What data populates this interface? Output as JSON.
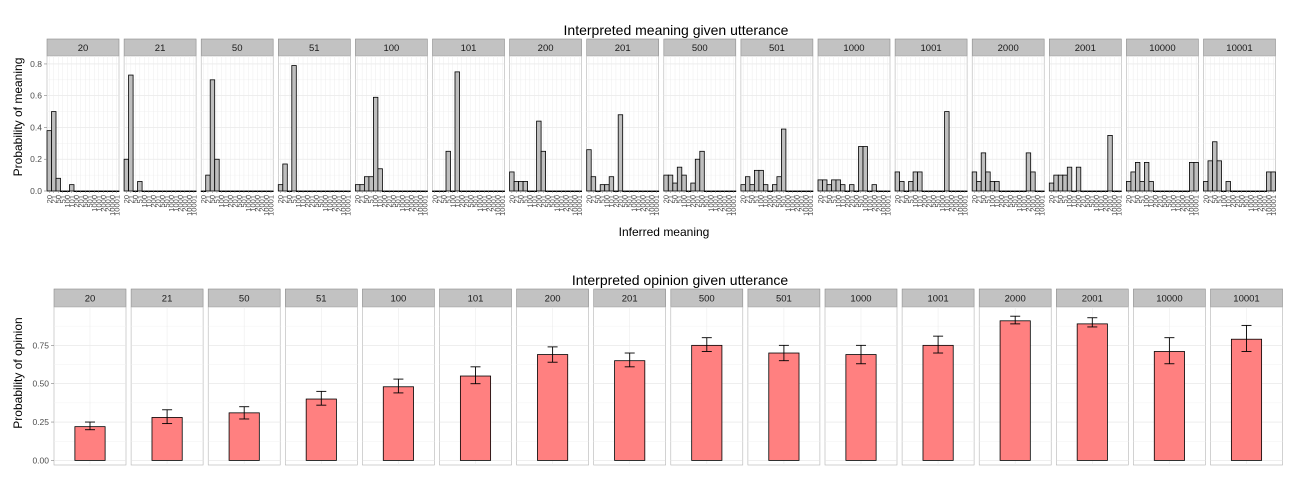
{
  "chart_data": [
    {
      "type": "bar",
      "title": "Interpreted meaning given utterance",
      "xlabel": "Inferred meaning",
      "ylabel": "Probability of meaning",
      "ylim": [
        0,
        0.85
      ],
      "yticks": [
        0,
        0.2,
        0.4,
        0.6,
        0.8
      ],
      "ytick_labels": [
        "0.0",
        "0.2",
        "0.4",
        "0.6",
        "0.8"
      ],
      "grid": true,
      "bar_color": "#bebebe",
      "categories": [
        "20",
        "21",
        "50",
        "51",
        "100",
        "101",
        "200",
        "201",
        "500",
        "501",
        "1000",
        "1001",
        "2000",
        "2001",
        "10000",
        "10001"
      ],
      "facets": [
        "20",
        "21",
        "50",
        "51",
        "100",
        "101",
        "200",
        "201",
        "500",
        "501",
        "1000",
        "1001",
        "2000",
        "2001",
        "10000",
        "10001"
      ],
      "series": [
        {
          "facet": "20",
          "values": [
            0.38,
            0.5,
            0.08,
            0,
            0,
            0.04,
            0,
            0,
            0,
            0,
            0,
            0,
            0,
            0,
            0,
            0
          ]
        },
        {
          "facet": "21",
          "values": [
            0.2,
            0.73,
            0,
            0.06,
            0,
            0,
            0,
            0,
            0,
            0,
            0,
            0,
            0,
            0,
            0,
            0
          ]
        },
        {
          "facet": "50",
          "values": [
            0,
            0.1,
            0.7,
            0.2,
            0,
            0,
            0,
            0,
            0,
            0,
            0,
            0,
            0,
            0,
            0,
            0
          ]
        },
        {
          "facet": "51",
          "values": [
            0.04,
            0.17,
            0,
            0.79,
            0,
            0,
            0,
            0,
            0,
            0,
            0,
            0,
            0,
            0,
            0,
            0
          ]
        },
        {
          "facet": "100",
          "values": [
            0.04,
            0.04,
            0.09,
            0.09,
            0.59,
            0.14,
            0,
            0,
            0,
            0,
            0,
            0,
            0,
            0,
            0,
            0
          ]
        },
        {
          "facet": "101",
          "values": [
            0,
            0,
            0,
            0.25,
            0,
            0.75,
            0,
            0,
            0,
            0,
            0,
            0,
            0,
            0,
            0,
            0
          ]
        },
        {
          "facet": "200",
          "values": [
            0.12,
            0.06,
            0.06,
            0.06,
            0,
            0,
            0.44,
            0.25,
            0,
            0,
            0,
            0,
            0,
            0,
            0,
            0
          ]
        },
        {
          "facet": "201",
          "values": [
            0.26,
            0.09,
            0,
            0.04,
            0.04,
            0.09,
            0,
            0.48,
            0,
            0,
            0,
            0,
            0,
            0,
            0,
            0
          ]
        },
        {
          "facet": "500",
          "values": [
            0.1,
            0.1,
            0.05,
            0.15,
            0.1,
            0,
            0.05,
            0.2,
            0.25,
            0,
            0,
            0,
            0,
            0,
            0,
            0
          ]
        },
        {
          "facet": "501",
          "values": [
            0.04,
            0.09,
            0.04,
            0.13,
            0.13,
            0.04,
            0,
            0.04,
            0.09,
            0.39,
            0,
            0,
            0,
            0,
            0,
            0
          ]
        },
        {
          "facet": "1000",
          "values": [
            0.07,
            0.07,
            0.04,
            0.07,
            0.07,
            0.04,
            0,
            0.04,
            0,
            0.28,
            0.28,
            0,
            0.04,
            0,
            0,
            0
          ]
        },
        {
          "facet": "1001",
          "values": [
            0.12,
            0.06,
            0,
            0.06,
            0.12,
            0.12,
            0,
            0,
            0,
            0,
            0,
            0.5,
            0,
            0,
            0,
            0
          ]
        },
        {
          "facet": "2000",
          "values": [
            0.12,
            0.06,
            0.24,
            0.12,
            0.06,
            0.06,
            0,
            0,
            0,
            0,
            0,
            0,
            0.24,
            0.12,
            0,
            0
          ]
        },
        {
          "facet": "2001",
          "values": [
            0.05,
            0.1,
            0.1,
            0.1,
            0.15,
            0,
            0.15,
            0,
            0,
            0,
            0,
            0,
            0,
            0.35,
            0,
            0
          ]
        },
        {
          "facet": "10000",
          "values": [
            0.06,
            0.12,
            0.18,
            0.06,
            0.18,
            0.06,
            0,
            0,
            0,
            0,
            0,
            0,
            0,
            0,
            0.18,
            0.18
          ]
        },
        {
          "facet": "10001",
          "values": [
            0.06,
            0.19,
            0.31,
            0.19,
            0,
            0.06,
            0,
            0,
            0,
            0,
            0,
            0,
            0,
            0,
            0.12,
            0.12
          ]
        }
      ]
    },
    {
      "type": "bar",
      "title": "Interpreted opinion given utterance",
      "xlabel": "",
      "ylabel": "Probability of opinion",
      "ylim": [
        -0.03,
        1.0
      ],
      "yticks": [
        0,
        0.25,
        0.5,
        0.75
      ],
      "ytick_labels": [
        "0.00",
        "0.25",
        "0.50",
        "0.75"
      ],
      "grid": true,
      "bar_color": "#ff8080",
      "facets": [
        "20",
        "21",
        "50",
        "51",
        "100",
        "101",
        "200",
        "201",
        "500",
        "501",
        "1000",
        "1001",
        "2000",
        "2001",
        "10000",
        "10001"
      ],
      "values": [
        0.22,
        0.28,
        0.31,
        0.4,
        0.48,
        0.55,
        0.69,
        0.65,
        0.75,
        0.7,
        0.69,
        0.75,
        0.91,
        0.89,
        0.71,
        0.79
      ],
      "error_low": [
        0.2,
        0.24,
        0.27,
        0.36,
        0.44,
        0.5,
        0.64,
        0.61,
        0.71,
        0.65,
        0.63,
        0.7,
        0.89,
        0.87,
        0.63,
        0.71
      ],
      "error_high": [
        0.25,
        0.33,
        0.35,
        0.45,
        0.53,
        0.61,
        0.74,
        0.7,
        0.8,
        0.75,
        0.75,
        0.81,
        0.94,
        0.93,
        0.8,
        0.88
      ]
    }
  ]
}
